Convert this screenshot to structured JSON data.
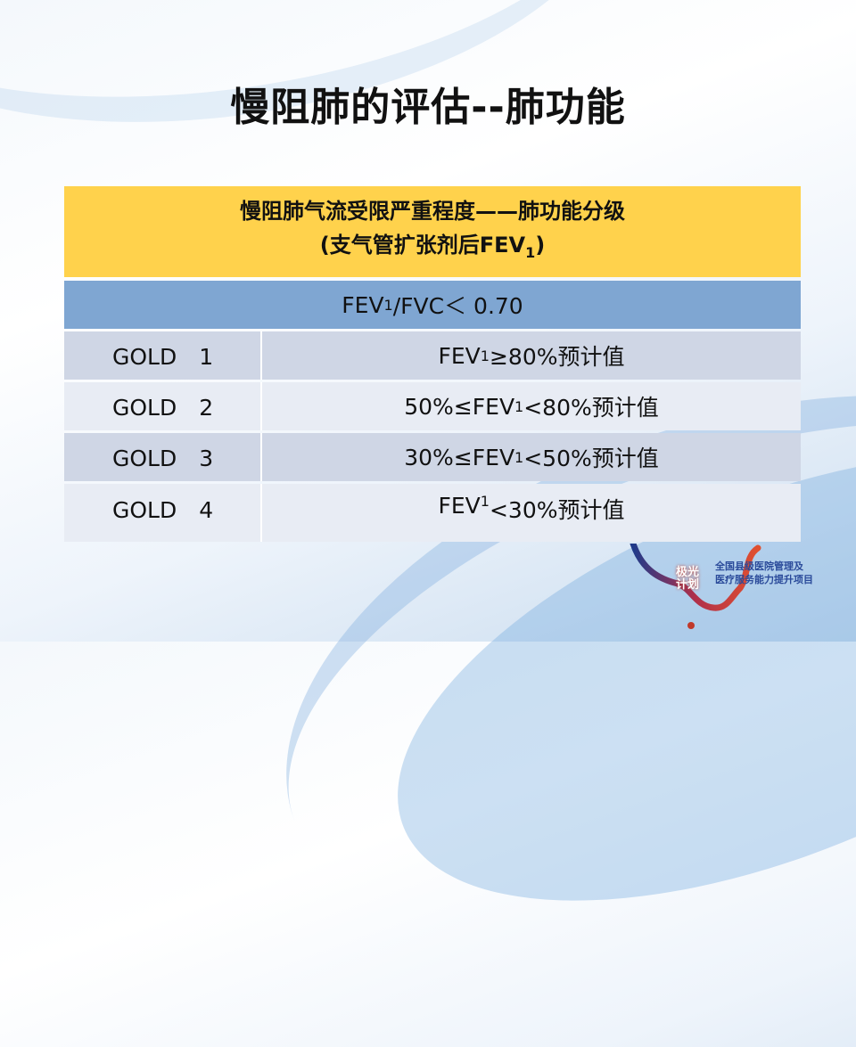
{
  "slide": {
    "title": "慢阻肺的评估--肺功能",
    "table": {
      "header_line1": "慢阻肺气流受限严重程度——肺功能分级",
      "header_line2_pre": "(支气管扩张剂后FEV",
      "header_line2_sub": "1",
      "header_line2_post": ")",
      "criterion": {
        "pre": "FEV",
        "sub": "1",
        "post": "/FVC＜ 0.70"
      },
      "rows": [
        {
          "grade": "GOLD　1",
          "pre": "FEV",
          "sub": "1",
          "post": " ≥80%预计值"
        },
        {
          "grade": "GOLD　2",
          "pre": "50%≤FEV",
          "sub": "1",
          "post": " <80%预计值"
        },
        {
          "grade": "GOLD　3",
          "pre": "30%≤FEV",
          "sub": "1",
          "post": " <50%预计值"
        },
        {
          "grade": "GOLD　4",
          "pre": "FEV",
          "sub": "1",
          "post": " <30%预计值"
        }
      ]
    },
    "logo": {
      "mark": "极光计划",
      "line1": "全国县级医院管理及",
      "line2": "医疗服务能力提升项目"
    },
    "colors": {
      "header": "#FFD24C",
      "criterion": "#7FA6D2",
      "row_dark": "#CFD6E5",
      "row_light": "#E8ECF4"
    }
  }
}
